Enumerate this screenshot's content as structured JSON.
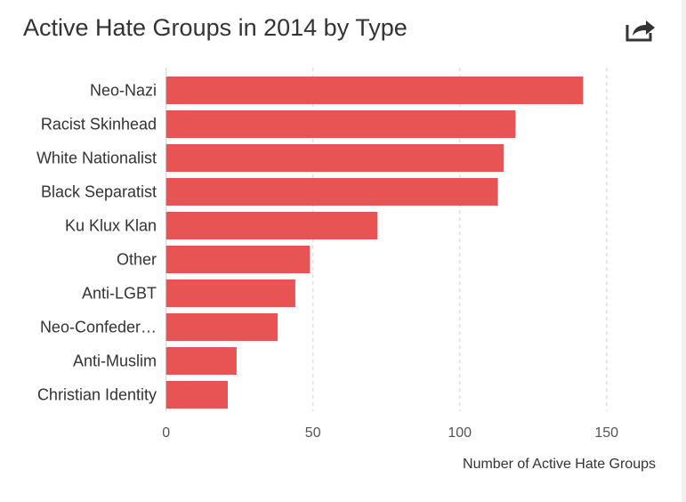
{
  "header": {
    "title": "Active Hate Groups in 2014 by Type",
    "share_icon": "share-icon"
  },
  "colors": {
    "bar": "#e85353",
    "grid": "#e3e3e3"
  },
  "chart_data": {
    "type": "bar",
    "orientation": "horizontal",
    "title": "Active Hate Groups in 2014 by Type",
    "xlabel": "Number of Active Hate Groups",
    "ylabel": "",
    "categories": [
      "Neo-Nazi",
      "Racist Skinhead",
      "White Nationalist",
      "Black Separatist",
      "Ku Klux Klan",
      "Other",
      "Anti-LGBT",
      "Neo-Confeder…",
      "Anti-Muslim",
      "Christian Identity"
    ],
    "values": [
      142,
      119,
      115,
      113,
      72,
      49,
      44,
      38,
      24,
      21
    ],
    "xlim": [
      0,
      160
    ],
    "xticks": [
      0,
      50,
      100,
      150
    ],
    "xtick_labels": [
      "0",
      "50",
      "100",
      "150"
    ],
    "grid": "vertical dashed"
  }
}
